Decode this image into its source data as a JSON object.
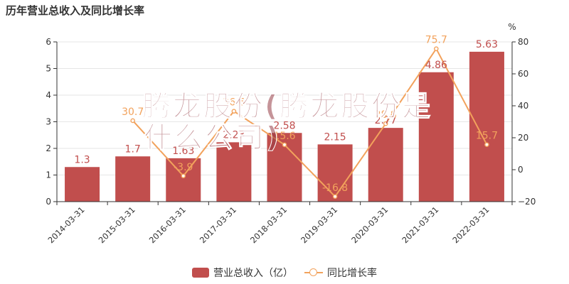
{
  "colors": {
    "bar": "#c14e4d",
    "line": "#f2a25c",
    "axis": "#333333",
    "grid": "#e6e6e6"
  },
  "chart_data": {
    "type": "bar",
    "title": "历年营业总收入及同比增长率",
    "categories": [
      "2014-03-31",
      "2015-03-31",
      "2016-03-31",
      "2017-03-31",
      "2018-03-31",
      "2019-03-31",
      "2020-03-31",
      "2021-03-31",
      "2022-03-31"
    ],
    "series": [
      {
        "name": "营业总收入（亿）",
        "type": "bar",
        "axis": "left",
        "values": [
          1.3,
          1.7,
          1.63,
          2.23,
          2.58,
          2.15,
          2.77,
          4.86,
          5.63
        ],
        "labels": [
          "1.3",
          "1.7",
          "1.63",
          "2.23",
          "2.58",
          "2.15",
          "2.77",
          "4.86",
          "5.63"
        ]
      },
      {
        "name": "同比增长率",
        "type": "line",
        "axis": "right",
        "values": [
          null,
          30.7,
          -3.9,
          36.6,
          15.6,
          -16.8,
          28.8,
          75.7,
          15.7
        ],
        "labels": [
          "",
          "30.7",
          "-3.9",
          "36.6",
          "15.6",
          "-16.8",
          "28.8",
          "75.7",
          "15.7"
        ]
      }
    ],
    "ylim_left": [
      0,
      6
    ],
    "yticks_left": [
      0,
      1,
      2,
      3,
      4,
      5,
      6
    ],
    "ylim_right": [
      -20,
      80
    ],
    "yticks_right": [
      -20,
      0,
      20,
      40,
      60,
      80
    ],
    "ylabel_right": "%",
    "grid": true,
    "legend_position": "bottom"
  },
  "watermark": {
    "line1": "腾龙股份(腾龙股份是",
    "line2": "什么公司)"
  }
}
